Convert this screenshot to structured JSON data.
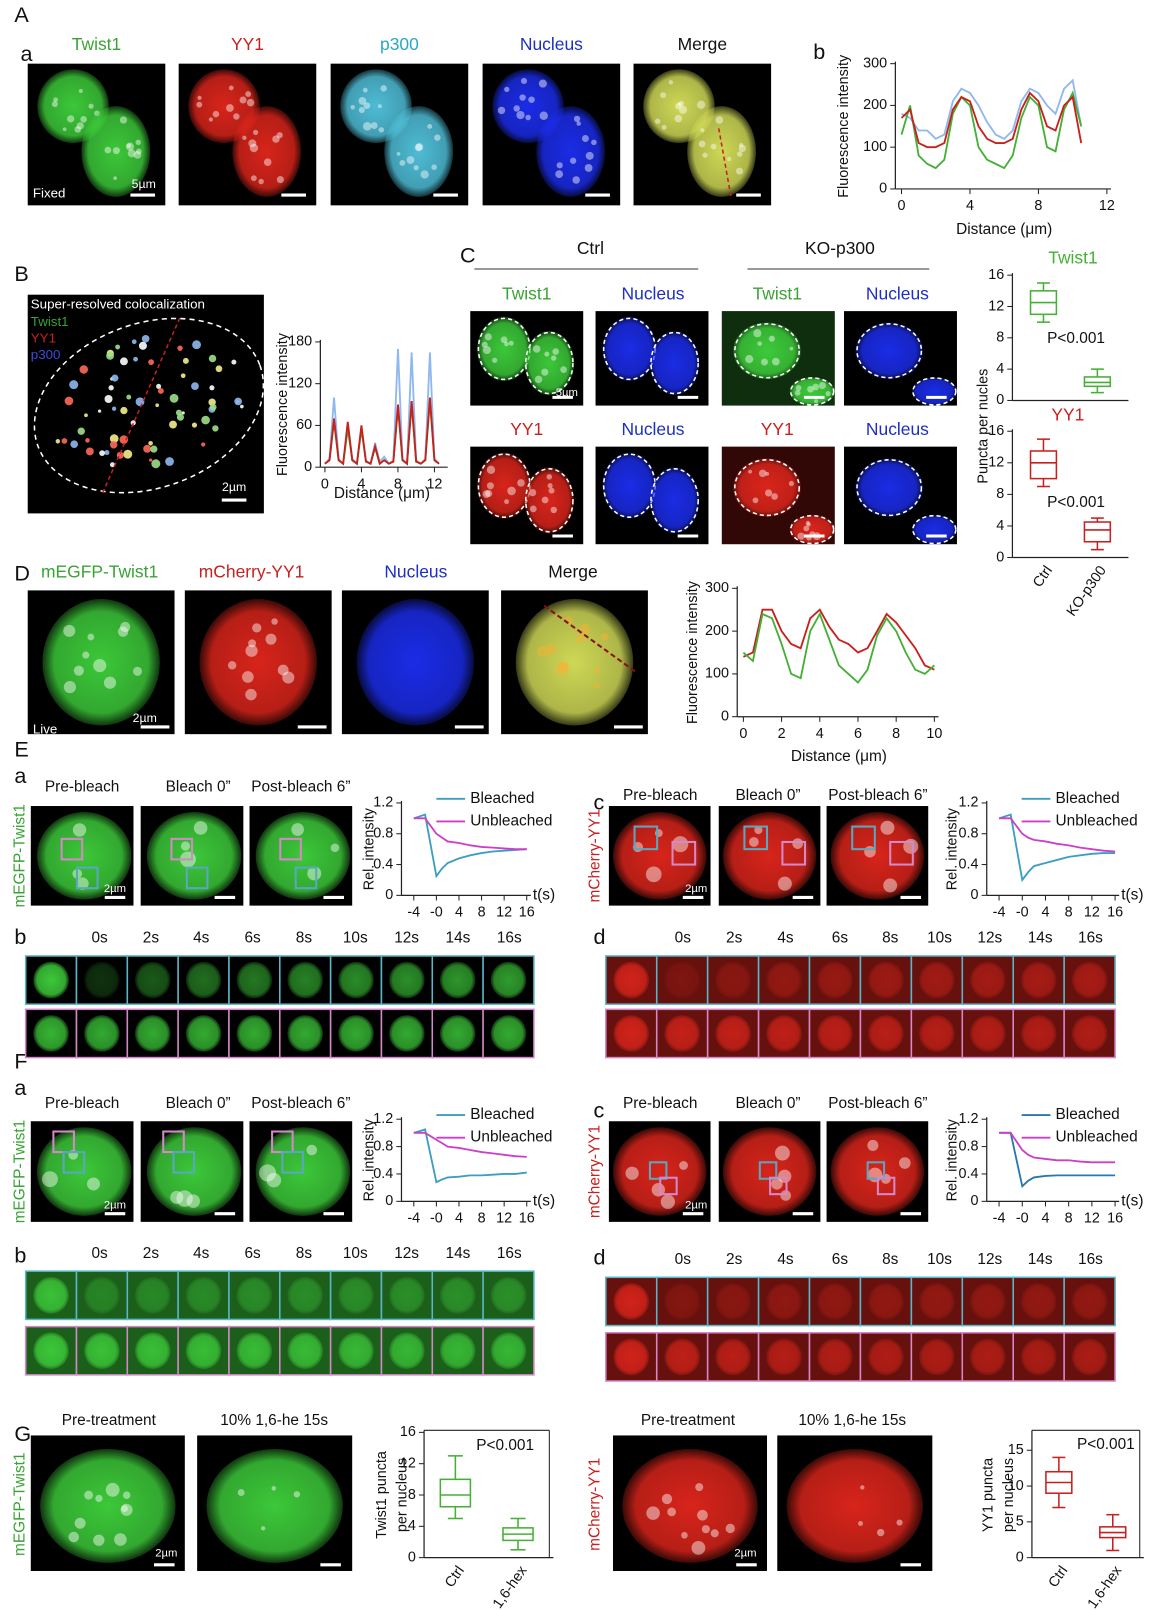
{
  "figure": {
    "letters": [
      "A",
      "a",
      "b",
      "B",
      "C",
      "D",
      "E",
      "a",
      "c",
      "b",
      "d",
      "F",
      "a",
      "c",
      "b",
      "d",
      "G"
    ],
    "A_channels": [
      "Twist1",
      "YY1",
      "p300",
      "Nucleus",
      "Merge"
    ],
    "A_fixed": "Fixed",
    "A_scale": "5µm",
    "B_title": "Super-resolved colocalization",
    "B_legend": [
      "Twist1",
      "YY1",
      "p300"
    ],
    "B_scale": "2µm",
    "C_groups": [
      "Ctrl",
      "KO-p300"
    ],
    "C_row1": [
      "Twist1",
      "Nucleus",
      "Twist1",
      "Nucleus"
    ],
    "C_row2": [
      "YY1",
      "Nucleus",
      "YY1",
      "Nucleus"
    ],
    "C_scale": "5µm",
    "D_channels": [
      "mEGFP-Twist1",
      "mCherry-YY1",
      "Nucleus",
      "Merge"
    ],
    "D_live": "Live",
    "D_scale": "2µm",
    "E_stages": [
      "Pre-bleach",
      "Bleach 0”",
      "Post-bleach 6”"
    ],
    "E_cell_labels": [
      "mEGFP-Twist1",
      "mCherry-YY1"
    ],
    "E_scale": "2µm",
    "E_times": [
      "0s",
      "2s",
      "4s",
      "6s",
      "8s",
      "10s",
      "12s",
      "14s",
      "16s"
    ],
    "F_stages": [
      "Pre-bleach",
      "Bleach 0”",
      "Post-bleach 6”"
    ],
    "F_cell_labels": [
      "mEGFP-Twist1",
      "mCherry-YY1"
    ],
    "F_scale": "2µm",
    "F_times": [
      "0s",
      "2s",
      "4s",
      "6s",
      "8s",
      "10s",
      "12s",
      "14s",
      "16s"
    ],
    "G_stages": [
      "Pre-treatment",
      "10% 1,6-he 15s"
    ],
    "G_cell_labels": [
      "mEGFP-Twist1",
      "mCherry-YY1"
    ],
    "G_scale": "2µm"
  },
  "chart_data": [
    {
      "type": "line",
      "ylabel": "Fluorescence intensity",
      "xlabel": "Distance (μm)",
      "xlim": [
        0,
        12
      ],
      "xticks": [
        0,
        4,
        8,
        12
      ],
      "ylim": [
        0,
        300
      ],
      "yticks": [
        0,
        100,
        200,
        300
      ],
      "x": [
        0,
        0.5,
        1,
        1.5,
        2,
        2.5,
        3,
        3.5,
        4,
        4.5,
        5,
        5.5,
        6,
        6.5,
        7,
        7.5,
        8,
        8.5,
        9,
        9.5,
        10,
        10.5
      ],
      "series": [
        {
          "color": "#8fb8f0",
          "values": [
            180,
            170,
            140,
            140,
            120,
            130,
            210,
            240,
            230,
            200,
            160,
            130,
            120,
            140,
            210,
            240,
            230,
            200,
            180,
            240,
            260,
            150
          ]
        },
        {
          "color": "#44b035",
          "values": [
            130,
            200,
            80,
            60,
            50,
            70,
            180,
            220,
            200,
            100,
            70,
            60,
            50,
            80,
            170,
            220,
            200,
            100,
            90,
            190,
            230,
            150
          ]
        },
        {
          "color": "#c8201e",
          "values": [
            170,
            190,
            110,
            100,
            100,
            110,
            190,
            220,
            210,
            150,
            120,
            110,
            110,
            120,
            190,
            230,
            210,
            150,
            140,
            200,
            220,
            110
          ]
        }
      ]
    },
    {
      "type": "line",
      "ylabel": "Fluorescence intensity",
      "xlabel": "Distance (μm)",
      "xlim": [
        -0.5,
        13
      ],
      "xticks": [
        0,
        4,
        8,
        12
      ],
      "ylim": [
        0,
        180
      ],
      "yticks": [
        0,
        60,
        120,
        180
      ],
      "x": [
        0,
        0.5,
        1,
        1.5,
        2,
        2.5,
        3,
        3.5,
        4,
        4.5,
        5,
        5.5,
        6,
        6.5,
        7,
        7.5,
        8,
        8.5,
        9,
        9.5,
        10,
        10.5,
        11,
        11.5,
        12,
        12.5
      ],
      "series": [
        {
          "color": "#8fb8f0",
          "values": [
            5,
            12,
            100,
            12,
            5,
            60,
            12,
            5,
            55,
            10,
            5,
            35,
            8,
            15,
            5,
            10,
            170,
            12,
            5,
            165,
            10,
            5,
            12,
            165,
            12,
            5
          ]
        },
        {
          "color": "#44b035",
          "values": [
            5,
            10,
            65,
            10,
            5,
            55,
            10,
            5,
            55,
            8,
            5,
            28,
            5,
            10,
            5,
            8,
            85,
            10,
            5,
            90,
            8,
            5,
            10,
            95,
            10,
            5
          ]
        },
        {
          "color": "#c8201e",
          "values": [
            5,
            10,
            70,
            10,
            5,
            65,
            10,
            5,
            60,
            8,
            5,
            30,
            5,
            10,
            5,
            8,
            90,
            10,
            5,
            95,
            8,
            5,
            10,
            100,
            10,
            5
          ]
        }
      ]
    },
    {
      "type": "box",
      "title": "Twist1",
      "ylabel": "Puncta per nucles",
      "annotation": "P<0.001",
      "color": "#44b035",
      "ylim": [
        0,
        16
      ],
      "yticks": [
        0,
        4,
        8,
        12,
        16
      ],
      "boxes": [
        {
          "min": 10,
          "q1": 11,
          "median": 12.5,
          "q3": 14,
          "max": 15
        },
        {
          "min": 1,
          "q1": 1.8,
          "median": 2.3,
          "q3": 3,
          "max": 4
        }
      ]
    },
    {
      "type": "box",
      "title": "YY1",
      "annotation": "P<0.001",
      "color": "#c8201e",
      "categories": [
        "Ctrl",
        "KO-p300"
      ],
      "ylim": [
        0,
        16
      ],
      "yticks": [
        0,
        4,
        8,
        12,
        16
      ],
      "boxes": [
        {
          "min": 9,
          "q1": 10,
          "median": 12,
          "q3": 13.5,
          "max": 15
        },
        {
          "min": 1,
          "q1": 2,
          "median": 3.5,
          "q3": 4.5,
          "max": 5
        }
      ]
    },
    {
      "type": "line",
      "ylabel": "Fluorescence intensity",
      "xlabel": "Distance (μm)",
      "xlim": [
        0,
        10
      ],
      "xticks": [
        0,
        2,
        4,
        6,
        8,
        10
      ],
      "ylim": [
        0,
        300
      ],
      "yticks": [
        0,
        100,
        200,
        300
      ],
      "x": [
        0,
        0.5,
        1,
        1.5,
        2,
        2.5,
        3,
        3.5,
        4,
        4.5,
        5,
        5.5,
        6,
        6.5,
        7,
        7.5,
        8,
        8.5,
        9,
        9.5,
        10
      ],
      "series": [
        {
          "color": "#c8201e",
          "values": [
            140,
            150,
            250,
            250,
            200,
            170,
            160,
            230,
            250,
            210,
            180,
            170,
            150,
            160,
            200,
            240,
            220,
            190,
            160,
            120,
            110
          ]
        },
        {
          "color": "#44b035",
          "values": [
            150,
            130,
            240,
            230,
            170,
            100,
            90,
            200,
            240,
            180,
            120,
            100,
            80,
            110,
            190,
            230,
            200,
            150,
            110,
            100,
            120
          ]
        }
      ]
    },
    {
      "type": "line",
      "ylabel": "Rel. intensity",
      "xlabel": "t(s)",
      "legend": "upper right",
      "xlim": [
        -4,
        16
      ],
      "xticks": [
        -4,
        {
          "value": 0,
          "label": "-0"
        },
        4,
        8,
        12,
        16
      ],
      "ylim": [
        0,
        1.2
      ],
      "yticks": [
        0,
        0.4,
        0.8,
        1.2
      ],
      "x": [
        -4,
        -2,
        0,
        1,
        2,
        4,
        6,
        8,
        10,
        12,
        14,
        16
      ],
      "series": [
        {
          "name": "Bleached",
          "color": "#3d9ec0",
          "values": [
            1.0,
            1.05,
            0.25,
            0.35,
            0.42,
            0.48,
            0.52,
            0.55,
            0.57,
            0.58,
            0.59,
            0.6
          ]
        },
        {
          "name": "Unbleached",
          "color": "#cc3fc8",
          "values": [
            1.0,
            1.0,
            0.8,
            0.75,
            0.7,
            0.68,
            0.65,
            0.63,
            0.62,
            0.61,
            0.6,
            0.6
          ]
        }
      ]
    },
    {
      "type": "line",
      "ylabel": "Rel. intensity",
      "xlabel": "t(s)",
      "legend": "upper right",
      "xlim": [
        -4,
        16
      ],
      "xticks": [
        -4,
        {
          "value": 0,
          "label": "-0"
        },
        4,
        8,
        12,
        16
      ],
      "ylim": [
        0,
        1.2
      ],
      "yticks": [
        0,
        0.4,
        0.8,
        1.2
      ],
      "x": [
        -4,
        -2,
        0,
        1,
        2,
        4,
        6,
        8,
        10,
        12,
        14,
        16
      ],
      "series": [
        {
          "name": "Bleached",
          "color": "#3d9ec0",
          "values": [
            1.0,
            1.05,
            0.2,
            0.3,
            0.38,
            0.42,
            0.46,
            0.5,
            0.52,
            0.54,
            0.55,
            0.55
          ]
        },
        {
          "name": "Unbleached",
          "color": "#cc3fc8",
          "values": [
            1.0,
            1.0,
            0.8,
            0.75,
            0.72,
            0.7,
            0.67,
            0.65,
            0.62,
            0.6,
            0.58,
            0.57
          ]
        }
      ]
    },
    {
      "type": "line",
      "ylabel": "Rel. intensity",
      "xlabel": "t(s)",
      "legend": "upper right",
      "xlim": [
        -4,
        16
      ],
      "xticks": [
        -4,
        {
          "value": 0,
          "label": "-0"
        },
        4,
        8,
        12,
        16
      ],
      "ylim": [
        0,
        1.2
      ],
      "yticks": [
        0,
        0.4,
        0.8,
        1.2
      ],
      "x": [
        -4,
        -2,
        0,
        1,
        2,
        4,
        6,
        8,
        10,
        12,
        14,
        16
      ],
      "series": [
        {
          "name": "Bleached",
          "color": "#3d9ec0",
          "values": [
            1.0,
            1.05,
            0.28,
            0.32,
            0.35,
            0.36,
            0.38,
            0.38,
            0.39,
            0.4,
            0.4,
            0.42
          ]
        },
        {
          "name": "Unbleached",
          "color": "#cc3fc8",
          "values": [
            1.0,
            1.0,
            0.9,
            0.85,
            0.8,
            0.78,
            0.75,
            0.72,
            0.7,
            0.68,
            0.66,
            0.65
          ]
        }
      ]
    },
    {
      "type": "line",
      "ylabel": "Rel. intensity",
      "xlabel": "t(s)",
      "legend": "upper right",
      "xlim": [
        -4,
        16
      ],
      "xticks": [
        -4,
        {
          "value": 0,
          "label": "-0"
        },
        4,
        8,
        12,
        16
      ],
      "ylim": [
        0,
        1.2
      ],
      "yticks": [
        0,
        0.4,
        0.8,
        1.2
      ],
      "x": [
        -4,
        -2,
        0,
        1,
        2,
        4,
        6,
        8,
        10,
        12,
        14,
        16
      ],
      "series": [
        {
          "name": "Bleached",
          "color": "#2a78b0",
          "values": [
            1.0,
            1.0,
            0.22,
            0.3,
            0.35,
            0.37,
            0.38,
            0.38,
            0.38,
            0.38,
            0.38,
            0.38
          ]
        },
        {
          "name": "Unbleached",
          "color": "#cc3fc8",
          "values": [
            1.0,
            1.0,
            0.75,
            0.68,
            0.64,
            0.62,
            0.6,
            0.6,
            0.58,
            0.57,
            0.57,
            0.57
          ]
        }
      ]
    },
    {
      "type": "box",
      "ylabel": [
        "Twist1 puncta",
        "per nucleus"
      ],
      "annotation": "P<0.001",
      "color": "#44b035",
      "frame": true,
      "categories": [
        "Ctrl",
        "1,6-hex"
      ],
      "ylim": [
        0,
        16
      ],
      "yticks": [
        0,
        4,
        8,
        12,
        16
      ],
      "boxes": [
        {
          "min": 5,
          "q1": 6.5,
          "median": 8,
          "q3": 10,
          "max": 13
        },
        {
          "min": 1,
          "q1": 2.2,
          "median": 3,
          "q3": 3.8,
          "max": 5
        }
      ]
    },
    {
      "type": "box",
      "ylabel": [
        "YY1 puncta",
        "per nucleus"
      ],
      "annotation": "P<0.001",
      "color": "#c8201e",
      "frame": true,
      "categories": [
        "Ctrl",
        "1,6-hex"
      ],
      "ylim": [
        0,
        17.5
      ],
      "yticks": [
        0,
        5,
        10,
        15
      ],
      "boxes": [
        {
          "min": 7,
          "q1": 9,
          "median": 10.5,
          "q3": 12,
          "max": 14
        },
        {
          "min": 1,
          "q1": 2.8,
          "median": 3.5,
          "q3": 4.3,
          "max": 6
        }
      ]
    }
  ]
}
